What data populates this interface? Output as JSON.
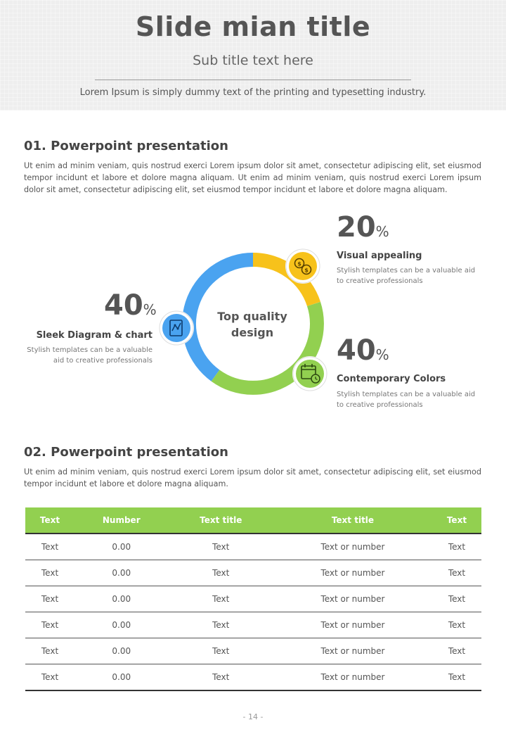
{
  "header": {
    "title": "Slide mian title",
    "subtitle": "Sub title text here",
    "description": "Lorem Ipsum is simply dummy text of the printing and typesetting industry."
  },
  "section1": {
    "title": "01. Powerpoint presentation",
    "body": "Ut enim ad minim veniam, quis nostrud exerci  Lorem ipsum dolor sit amet, consectetur adipiscing elit, set eiusmod tempor incidunt et labore et dolore magna aliquam. Ut enim ad minim veniam, quis nostrud exerci  Lorem ipsum dolor sit amet, consectetur adipiscing elit, set eiusmod tempor incidunt et labore et dolore magna aliquam."
  },
  "diagram": {
    "center_line1": "Top quality",
    "center_line2": "design",
    "colors": {
      "blue": "#4aa3f0",
      "yellow": "#f7c21b",
      "green": "#92d050"
    },
    "icons": [
      "coins-icon",
      "chart-document-icon",
      "calendar-clock-icon"
    ],
    "features": [
      {
        "number": "40",
        "unit": "%",
        "title": "Sleek Diagram & chart",
        "desc_line1": "Stylish templates can be a valuable",
        "desc_line2": "aid to creative professionals"
      },
      {
        "number": "20",
        "unit": "%",
        "title": "Visual appealing",
        "desc_line1": "Stylish templates can be a valuable aid",
        "desc_line2": "to creative professionals"
      },
      {
        "number": "40",
        "unit": "%",
        "title": "Contemporary Colors",
        "desc_line1": "Stylish templates can be a valuable aid",
        "desc_line2": "to creative professionals"
      }
    ]
  },
  "section2": {
    "title": "02. Powerpoint presentation",
    "body": "Ut enim ad minim veniam, quis nostrud exerci  Lorem ipsum dolor sit amet, consectetur adipiscing elit, set eiusmod tempor incidunt et labore et dolore magna aliquam."
  },
  "table": {
    "header_color": "#92d050",
    "headers": [
      "Text",
      "Number",
      "Text title",
      "Text title",
      "Text"
    ],
    "rows": [
      [
        "Text",
        "0.00",
        "Text",
        "Text or number",
        "Text"
      ],
      [
        "Text",
        "0.00",
        "Text",
        "Text or number",
        "Text"
      ],
      [
        "Text",
        "0.00",
        "Text",
        "Text or number",
        "Text"
      ],
      [
        "Text",
        "0.00",
        "Text",
        "Text or number",
        "Text"
      ],
      [
        "Text",
        "0.00",
        "Text",
        "Text or number",
        "Text"
      ],
      [
        "Text",
        "0.00",
        "Text",
        "Text or number",
        "Text"
      ]
    ]
  },
  "page_number": "- 14 -"
}
